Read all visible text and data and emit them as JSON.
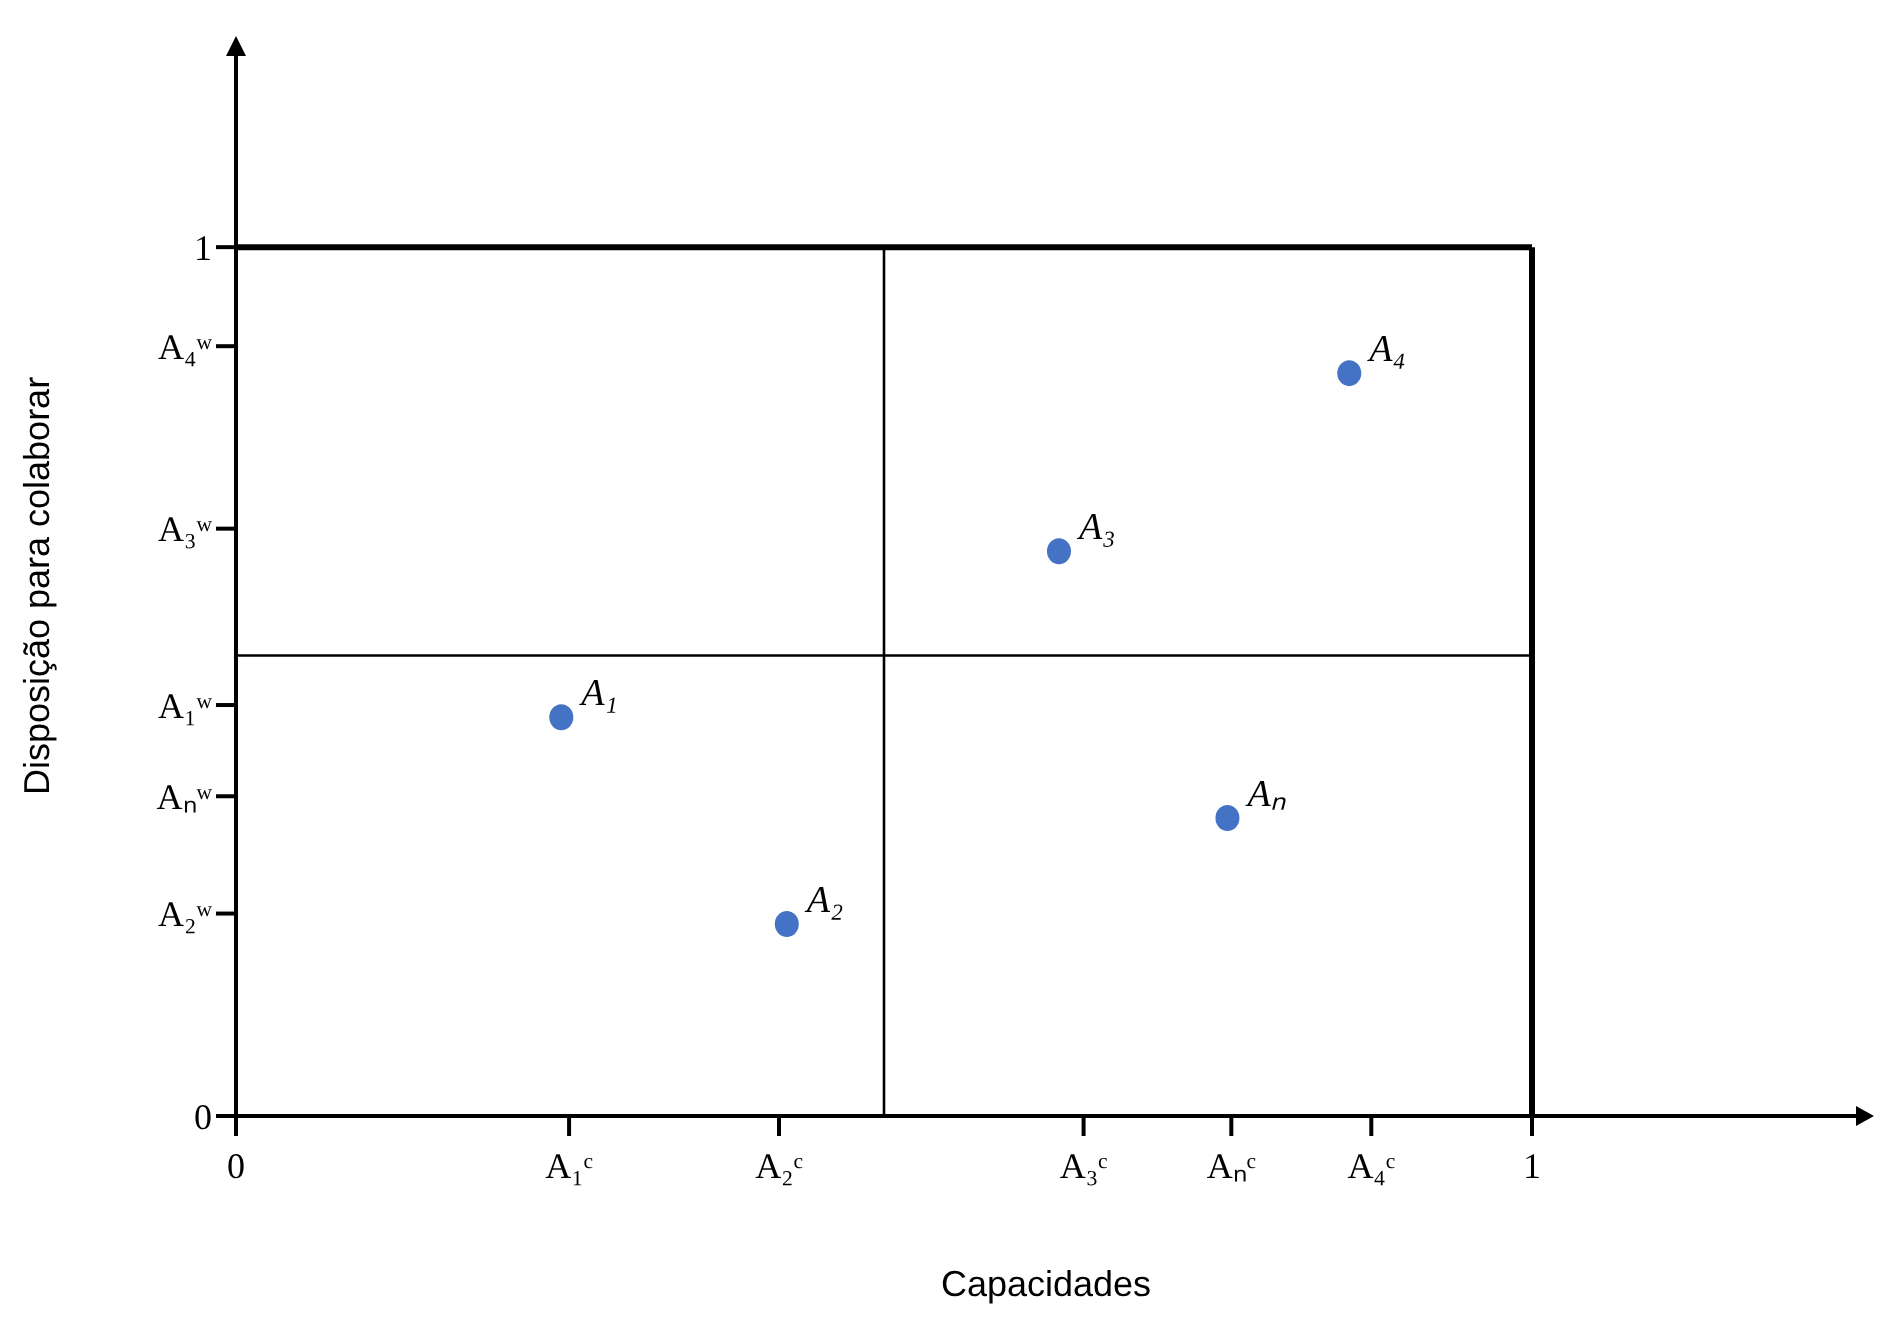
{
  "chart_data": {
    "type": "scatter",
    "xlabel": "Capacidades",
    "ylabel": "Disposição para colaborar",
    "x": [
      0.251,
      0.425,
      0.635,
      0.765,
      0.859
    ],
    "series": [
      {
        "color": "#4472c4",
        "values": [
          0.459,
          0.221,
          0.65,
          0.343,
          0.855
        ]
      }
    ],
    "marker": "circle",
    "xlim": [
      0,
      1.25
    ],
    "ylim": [
      0,
      1.22
    ],
    "xticks": [
      0,
      {
        "value": 0.257,
        "label": "A₁ᶜ"
      },
      {
        "value": 0.419,
        "label": "A₂ᶜ"
      },
      {
        "value": 0.654,
        "label": "A₃ᶜ"
      },
      {
        "value": 0.768,
        "label": "Aₙᶜ"
      },
      {
        "value": 0.876,
        "label": "A₄ᶜ"
      },
      1
    ],
    "yticks": [
      0,
      {
        "value": 0.233,
        "label": "A₂ʷ"
      },
      {
        "value": 0.368,
        "label": "Aₙʷ"
      },
      {
        "value": 0.473,
        "label": "A₁ʷ"
      },
      {
        "value": 0.676,
        "label": "A₃ʷ"
      },
      {
        "value": 0.886,
        "label": "A₄ʷ"
      },
      1
    ],
    "ref_lines": [
      {
        "axis": "x",
        "value": 1
      },
      {
        "axis": "y",
        "value": 1
      },
      {
        "axis": "x",
        "value": 0.5
      },
      {
        "axis": "y",
        "value": 0.53
      }
    ],
    "annotations": [
      {
        "text": "A₁",
        "x": 0.251,
        "y": 0.459
      },
      {
        "text": "A₂",
        "x": 0.425,
        "y": 0.221
      },
      {
        "text": "A₃",
        "x": 0.635,
        "y": 0.65
      },
      {
        "text": "Aₙ",
        "x": 0.765,
        "y": 0.343
      },
      {
        "text": "A₄",
        "x": 0.859,
        "y": 0.855
      }
    ]
  }
}
